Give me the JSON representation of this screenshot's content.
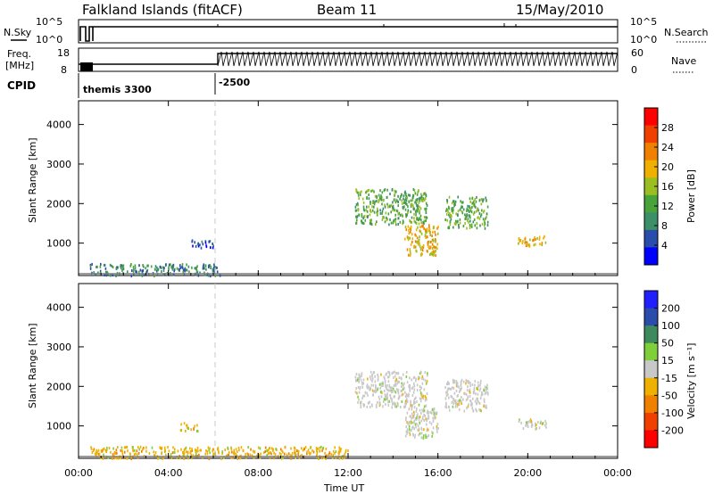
{
  "header": {
    "station": "Falkland Islands (fitACF)",
    "beam": "Beam 11",
    "date": "15/May/2010"
  },
  "strip_panels": {
    "nsky": {
      "left_label": "N.Sky",
      "right_label": "N.Search",
      "left_ticks": [
        "10^5",
        "10^0"
      ],
      "right_ticks": [
        "10^5",
        "10^0"
      ]
    },
    "freq": {
      "left_label_1": "Freq.",
      "left_label_2": "[MHz]",
      "right_label": "Nave",
      "left_ticks": [
        "18",
        "8"
      ],
      "right_ticks": [
        "60",
        "0"
      ]
    },
    "cpid": {
      "label": "CPID",
      "entries": [
        "themis 3300",
        "-2500"
      ]
    }
  },
  "time_axis": {
    "label": "Time UT",
    "ticks": [
      "00:00",
      "04:00",
      "08:00",
      "12:00",
      "16:00",
      "20:00",
      "00:00"
    ]
  },
  "colors": {
    "power_scale": [
      "#0000ff",
      "#2a4dab",
      "#3d8f6a",
      "#49a33b",
      "#9bbf22",
      "#f0b000",
      "#f08000",
      "#f04000",
      "#ff0000"
    ],
    "velocity_scale": [
      "#ff0000",
      "#f04000",
      "#f08000",
      "#f0b000",
      "#c8c8c8",
      "#7ecf3a",
      "#3f8a5c",
      "#2a4dab",
      "#2020ff"
    ]
  },
  "chart_data": [
    {
      "type": "heatmap",
      "title": "Power",
      "ylabel": "Slant Range [km]",
      "xlabel": "Time UT",
      "x_range_hours": [
        0,
        24
      ],
      "ylim": [
        180,
        4600
      ],
      "y_ticks": [
        "1000",
        "2000",
        "3000",
        "4000"
      ],
      "colorbar_label": "Power [dB]",
      "colorbar_ticks": [
        "4",
        "8",
        "12",
        "16",
        "20",
        "24",
        "28"
      ],
      "regions": [
        {
          "t0": 0.5,
          "t1": 6.3,
          "r0": 200,
          "r1": 500,
          "value": 8
        },
        {
          "t0": 5.0,
          "t1": 6.0,
          "r0": 900,
          "r1": 1100,
          "value": 4
        },
        {
          "t0": 12.3,
          "t1": 15.5,
          "r0": 1500,
          "r1": 2400,
          "value": 12
        },
        {
          "t0": 14.5,
          "t1": 16.0,
          "r0": 700,
          "r1": 1500,
          "value": 20
        },
        {
          "t0": 16.3,
          "t1": 18.2,
          "r0": 1400,
          "r1": 2200,
          "value": 12
        },
        {
          "t0": 19.5,
          "t1": 20.8,
          "r0": 950,
          "r1": 1200,
          "value": 20
        }
      ]
    },
    {
      "type": "heatmap",
      "title": "Velocity",
      "ylabel": "Slant Range [km]",
      "xlabel": "Time UT",
      "x_range_hours": [
        0,
        24
      ],
      "ylim": [
        180,
        4600
      ],
      "y_ticks": [
        "1000",
        "2000",
        "3000",
        "4000"
      ],
      "colorbar_label": "Velocity [m s⁻¹]",
      "colorbar_ticks": [
        "-200",
        "-100",
        "-50",
        "-15",
        "15",
        "50",
        "100",
        "200"
      ],
      "regions": [
        {
          "t0": 0.5,
          "t1": 12.0,
          "r0": 200,
          "r1": 500,
          "value": -30
        },
        {
          "t0": 4.5,
          "t1": 5.3,
          "r0": 900,
          "r1": 1100,
          "value": -80
        },
        {
          "t0": 12.3,
          "t1": 15.5,
          "r0": 1500,
          "r1": 2400,
          "value": 0
        },
        {
          "t0": 14.5,
          "t1": 16.0,
          "r0": 700,
          "r1": 1500,
          "value": 0
        },
        {
          "t0": 16.3,
          "t1": 18.2,
          "r0": 1400,
          "r1": 2200,
          "value": 0
        },
        {
          "t0": 19.5,
          "t1": 20.8,
          "r0": 950,
          "r1": 1200,
          "value": 0
        }
      ]
    }
  ]
}
